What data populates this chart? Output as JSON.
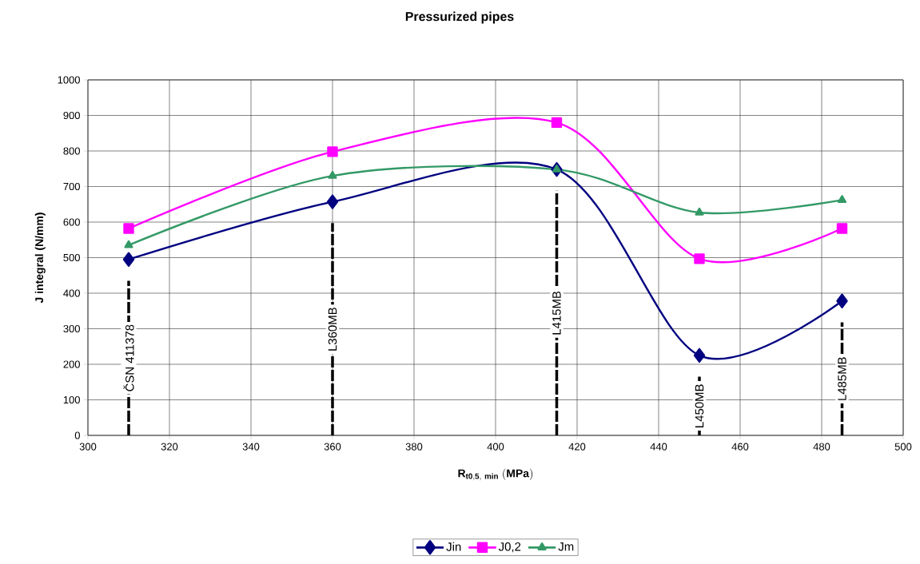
{
  "chart_data": {
    "type": "line",
    "title": "Pressurized pipes",
    "xlabel": "\\mathbf{R_{t0,5,\\ min}\\ (MPa)}",
    "ylabel": "J integral (N/mm)",
    "x": [
      310,
      360,
      415,
      450,
      485
    ],
    "series": [
      {
        "name": "Jin",
        "color": "#000080",
        "marker": "diamond",
        "values": [
          495,
          657,
          748,
          225,
          378
        ]
      },
      {
        "name": "J0,2",
        "color": "#ff00ff",
        "marker": "square",
        "values": [
          582,
          798,
          880,
          497,
          582
        ]
      },
      {
        "name": "Jm",
        "color": "#339966",
        "marker": "triangle",
        "values": [
          535,
          730,
          748,
          627,
          662
        ]
      }
    ],
    "xlim": [
      300,
      500
    ],
    "xticks": [
      300,
      320,
      340,
      360,
      380,
      400,
      420,
      440,
      460,
      480,
      500
    ],
    "ylim": [
      0,
      1000
    ],
    "yticks": [
      0,
      100,
      200,
      300,
      400,
      500,
      600,
      700,
      800,
      900,
      1000
    ],
    "ref_lines": [
      {
        "axis": "x",
        "value": 310,
        "label": "ČSN 411378",
        "color": "#000000",
        "line_style": "dashed"
      },
      {
        "axis": "x",
        "value": 360,
        "label": "L360MB",
        "color": "#000000",
        "line_style": "dashed"
      },
      {
        "axis": "x",
        "value": 415,
        "label": "L415MB",
        "color": "#000000",
        "line_style": "dashed"
      },
      {
        "axis": "x",
        "value": 450,
        "label": "L450MB",
        "color": "#000000",
        "line_style": "dashed"
      },
      {
        "axis": "x",
        "value": 485,
        "label": "L485MB",
        "color": "#000000",
        "line_style": "dashed"
      }
    ],
    "grid": true,
    "legend": "bottom",
    "line_style": "solid"
  }
}
